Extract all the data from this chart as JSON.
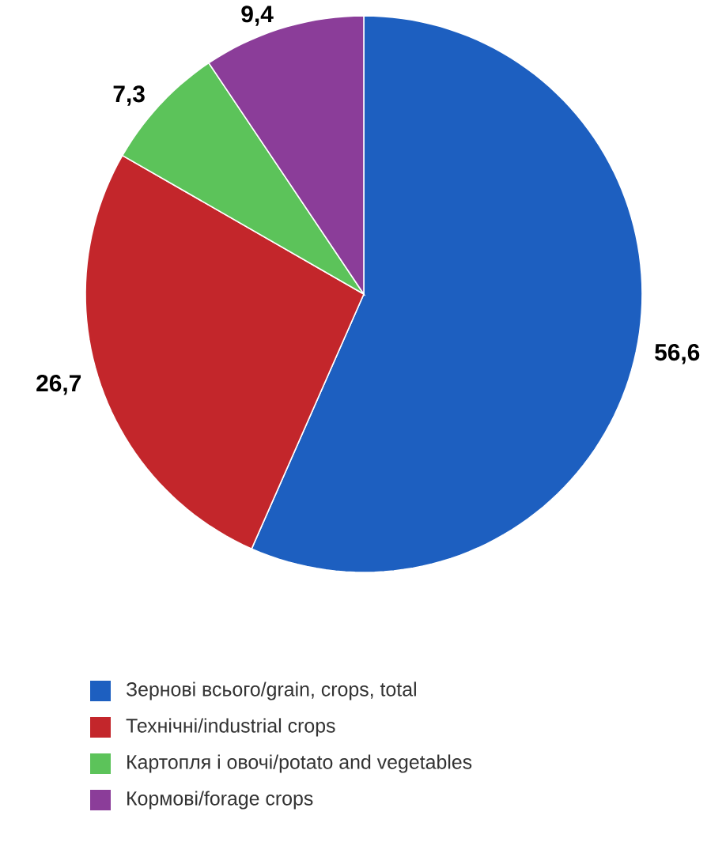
{
  "chart_data": {
    "type": "pie",
    "categories": [
      "Зернові всього/grain, crops, total",
      "Технічні/industrial crops",
      "Картопля і овочі/potato and vegetables",
      "Кормові/forage crops"
    ],
    "values": [
      56.6,
      26.7,
      7.3,
      9.4
    ],
    "value_labels": [
      "56,6",
      "26,7",
      "7,3",
      "9,4"
    ],
    "colors": [
      "#1d5fc0",
      "#c3262b",
      "#5cc35a",
      "#8b3d99"
    ],
    "legend": "bottom"
  }
}
